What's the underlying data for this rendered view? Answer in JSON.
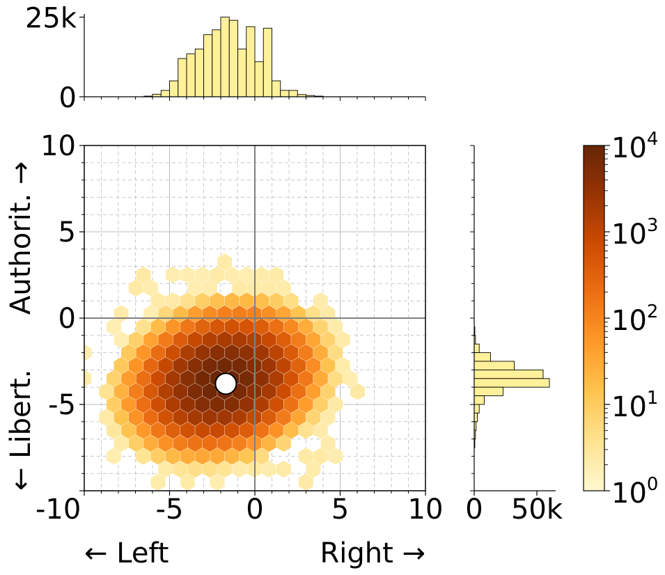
{
  "chart_data": [
    {
      "type": "heatmap",
      "subtype": "hexbin",
      "xlabel_left": "← Left",
      "xlabel_right": "Right →",
      "ylabel_bottom": "← Libert.",
      "ylabel_top": "Authorit. →",
      "xlim": [
        -10,
        10
      ],
      "ylim": [
        -10,
        10
      ],
      "xticks": [
        -10,
        -5,
        0,
        5,
        10
      ],
      "xtick_labels": [
        "-10",
        "-5",
        "0",
        "5",
        "10"
      ],
      "yticks": [
        -5,
        0,
        5,
        10
      ],
      "ytick_labels": [
        "-5",
        "0",
        "5",
        "10"
      ],
      "grid": true,
      "mean_marker": {
        "x": -1.7,
        "y": -3.8
      },
      "hex_size": 0.5,
      "density_model": {
        "center_x": -1.9,
        "center_y": -3.6,
        "sigma_x": 1.7,
        "sigma_y": 1.3,
        "peak_count": 9000,
        "tilt": 0.35
      }
    },
    {
      "type": "bar",
      "orientation": "vertical",
      "role": "x-marginal histogram",
      "bin_width": 0.5,
      "bin_starts": [
        -6.5,
        -6.0,
        -5.5,
        -5.0,
        -4.5,
        -4.0,
        -3.5,
        -3.0,
        -2.5,
        -2.0,
        -1.5,
        -1.0,
        -0.5,
        0.0,
        0.5,
        1.0,
        1.5,
        2.0,
        2.5,
        3.0,
        3.5
      ],
      "values": [
        200,
        800,
        2000,
        5000,
        12000,
        13500,
        15000,
        19500,
        21000,
        25000,
        24000,
        15000,
        22000,
        11000,
        21500,
        5000,
        2000,
        2000,
        700,
        400,
        200
      ],
      "ylim": [
        0,
        26000
      ],
      "yticks": [
        0,
        25000
      ],
      "ytick_labels": [
        "0",
        "25k"
      ],
      "color": "#fff09a"
    },
    {
      "type": "bar",
      "orientation": "horizontal",
      "role": "y-marginal histogram",
      "bin_width": 0.5,
      "bin_starts": [
        -1.0,
        -1.5,
        -2.0,
        -2.5,
        -3.0,
        -3.5,
        -4.0,
        -4.5,
        -5.0,
        -5.5,
        -6.0,
        -6.5,
        -7.0,
        -7.5
      ],
      "values": [
        500,
        1000,
        4000,
        13000,
        32000,
        55000,
        60000,
        23000,
        8000,
        4000,
        2500,
        1500,
        1000,
        500
      ],
      "xlim": [
        0,
        65000
      ],
      "xticks": [
        0,
        50000
      ],
      "xtick_labels": [
        "0",
        "50k"
      ],
      "color": "#fff09a"
    },
    {
      "type": "colorbar",
      "scale": "log",
      "range": [
        1,
        10000
      ],
      "tick_base": "10",
      "tick_exponents": [
        "0",
        "1",
        "2",
        "3",
        "4"
      ],
      "colors": [
        "#fff8cf",
        "#fee391",
        "#fec44f",
        "#fe9929",
        "#ec7014",
        "#cc4c02",
        "#993404",
        "#662506"
      ]
    }
  ]
}
